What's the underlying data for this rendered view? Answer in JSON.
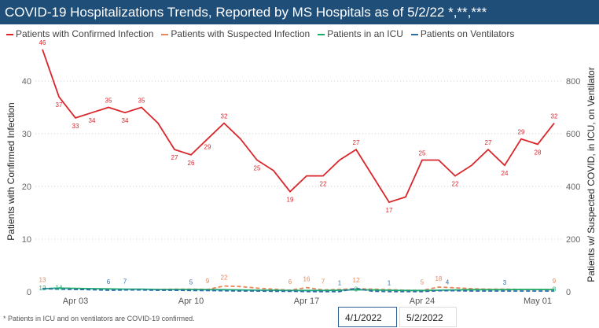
{
  "title": "COVID-19 Hospitalizations Trends, Reported by MS Hospitals as of 5/2/22 *,**,***",
  "footnote": "* Patients in ICU and on ventilators are COVID-19 confirmed.",
  "date_range": {
    "start": "4/1/2022",
    "end": "5/2/2022"
  },
  "chart_data": {
    "type": "line",
    "title": "COVID-19 Hospitalizations Trends, Reported by MS Hospitals as of 5/2/22 *,**,***",
    "ylabel": "Patients with Confirmed Infection",
    "y2label": "Patients w/ Suspected COVID, in ICU, on Ventilator",
    "ylim": [
      0,
      46
    ],
    "y2lim": [
      0,
      920
    ],
    "yticks": [
      0,
      10,
      20,
      30,
      40
    ],
    "y2ticks": [
      0,
      200,
      400,
      600,
      800
    ],
    "xticks": [
      "Apr 03",
      "Apr 10",
      "Apr 17",
      "Apr 24",
      "May 01"
    ],
    "x_start": "2022-04-01",
    "x_end": "2022-05-02",
    "grid": true,
    "legend_placement": "top",
    "series": [
      {
        "name": "Patients with Confirmed Infection",
        "axis": "left",
        "color": "#d9262b",
        "dash": false,
        "values": [
          46,
          37,
          33,
          34,
          35,
          34,
          35,
          32,
          27,
          26,
          29,
          32,
          29,
          25,
          23,
          19,
          22,
          22,
          25,
          27,
          22,
          17,
          18,
          25,
          25,
          22,
          24,
          27,
          24,
          29,
          28,
          32
        ],
        "labels": [
          46,
          37,
          33,
          34,
          35,
          34,
          35,
          null,
          27,
          26,
          29,
          32,
          null,
          25,
          null,
          19,
          null,
          22,
          null,
          27,
          null,
          17,
          null,
          25,
          null,
          22,
          null,
          27,
          24,
          29,
          28,
          32
        ]
      },
      {
        "name": "Patients with Suspected Infection",
        "axis": "right",
        "color": "#e8875a",
        "dash": true,
        "values": [
          13,
          12,
          11,
          10,
          9,
          8,
          8,
          9,
          10,
          10,
          9,
          22,
          20,
          14,
          10,
          6,
          16,
          7,
          9,
          12,
          10,
          8,
          6,
          5,
          18,
          15,
          12,
          10,
          10,
          9,
          9,
          9
        ],
        "labels": [
          13,
          null,
          null,
          null,
          null,
          null,
          null,
          null,
          null,
          null,
          9,
          22,
          null,
          null,
          null,
          6,
          16,
          7,
          null,
          12,
          null,
          null,
          null,
          5,
          18,
          null,
          null,
          null,
          null,
          null,
          null,
          9
        ]
      },
      {
        "name": "Patients in an ICU",
        "axis": "right",
        "color": "#1aab6b",
        "dash": false,
        "values": [
          12,
          14,
          13,
          12,
          11,
          10,
          10,
          9,
          9,
          9,
          8,
          8,
          7,
          6,
          6,
          5,
          5,
          5,
          6,
          8,
          7,
          6,
          5,
          5,
          6,
          7,
          8,
          8,
          8,
          9,
          9,
          8
        ],
        "labels": [
          12,
          14,
          null,
          null,
          null,
          null,
          null,
          null,
          null,
          null,
          null,
          null,
          null,
          null,
          null,
          null,
          null,
          null,
          null,
          8,
          null,
          null,
          null,
          null,
          null,
          null,
          null,
          null,
          null,
          null,
          null,
          8
        ]
      },
      {
        "name": "Patients on Ventilators",
        "axis": "right",
        "color": "#2f6ea6",
        "dash": true,
        "values": [
          12,
          10,
          9,
          8,
          6,
          7,
          7,
          6,
          6,
          5,
          5,
          4,
          3,
          3,
          2,
          2,
          1,
          1,
          1,
          13,
          2,
          1,
          1,
          1,
          4,
          4,
          3,
          3,
          3,
          3,
          3,
          3
        ],
        "labels": [
          null,
          null,
          null,
          null,
          6,
          7,
          null,
          null,
          null,
          5,
          null,
          null,
          null,
          null,
          null,
          null,
          null,
          null,
          1,
          null,
          null,
          1,
          null,
          null,
          4,
          null,
          null,
          null,
          3,
          null,
          null,
          null
        ]
      }
    ]
  }
}
